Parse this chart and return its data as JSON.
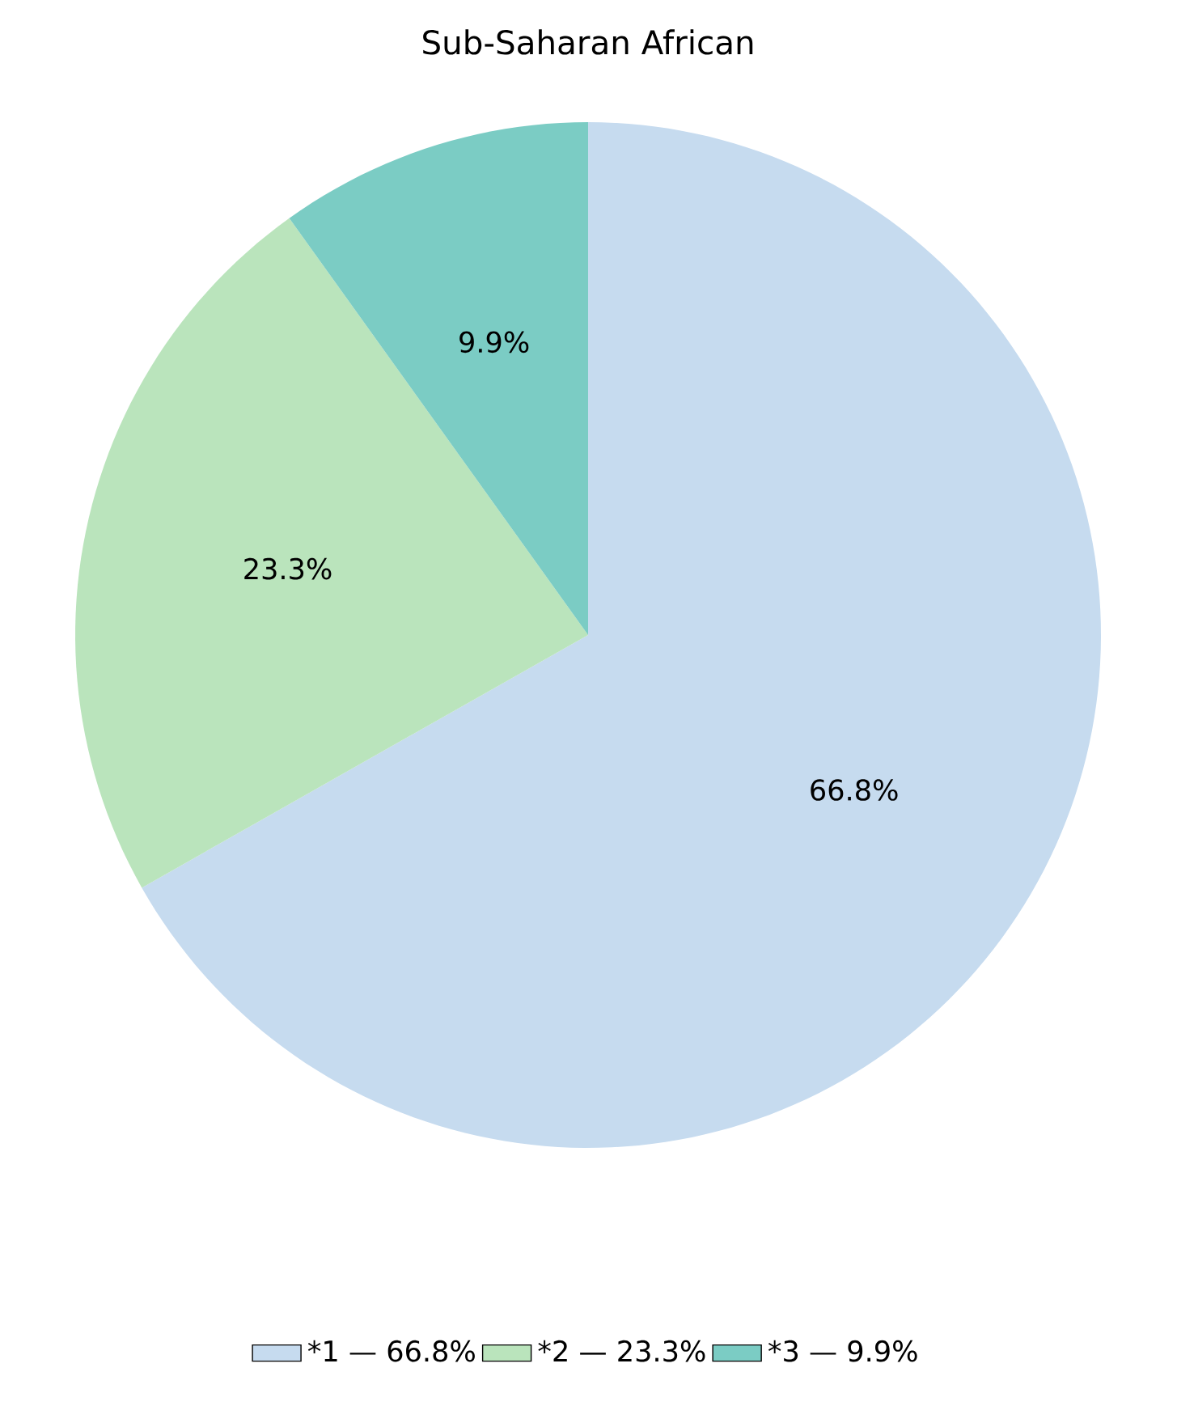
{
  "chart_data": {
    "type": "pie",
    "title": "Sub-Saharan African",
    "categories": [
      "*1 — 66.8%",
      "*2 — 23.3%",
      "*3 — 9.9%"
    ],
    "values": [
      66.8,
      23.3,
      9.9
    ],
    "value_labels": [
      "66.8%",
      "23.3%",
      "9.9%"
    ],
    "colors": [
      "#c6dbef",
      "#bae4bc",
      "#7bccc4"
    ],
    "legend": "bottom"
  }
}
